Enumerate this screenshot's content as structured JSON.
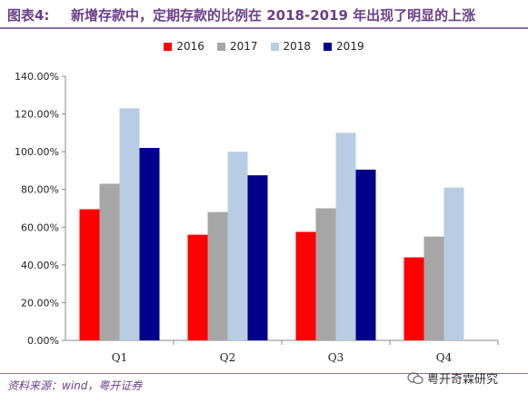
{
  "header": {
    "figure_label": "图表4:",
    "title": "新增存款中，定期存款的比例在 2018-2019 年出现了明显的上涨"
  },
  "source_text": "资料来源：wind，粤开证券",
  "watermark_text": "粤开奇霖研究",
  "chart_data": {
    "type": "bar",
    "categories": [
      "Q1",
      "Q2",
      "Q3",
      "Q4"
    ],
    "series": [
      {
        "name": "2016",
        "color": "#ff0000",
        "values": [
          69.5,
          56.0,
          57.5,
          44.0
        ]
      },
      {
        "name": "2017",
        "color": "#a6a6a6",
        "values": [
          83.0,
          68.0,
          70.0,
          55.0
        ]
      },
      {
        "name": "2018",
        "color": "#b8cce4",
        "values": [
          123.0,
          100.0,
          110.0,
          81.0
        ]
      },
      {
        "name": "2019",
        "color": "#00008b",
        "values": [
          102.0,
          87.5,
          90.5,
          null
        ]
      }
    ],
    "ylim": [
      0,
      140
    ],
    "yticks": [
      "0.00%",
      "20.00%",
      "40.00%",
      "60.00%",
      "80.00%",
      "100.00%",
      "120.00%",
      "140.00%"
    ],
    "legend_position": "top",
    "grid": false
  }
}
